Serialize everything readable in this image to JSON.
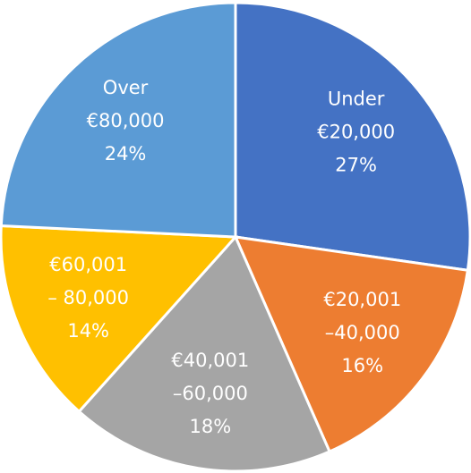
{
  "chart_data": {
    "type": "pie",
    "categories": [
      "Under\n€20,000",
      "€20,001\n–40,000",
      "€40,001\n–60,000",
      "€60,001\n– 80,000",
      "Over\n€80,000"
    ],
    "values": [
      27,
      16,
      18,
      14,
      24
    ],
    "value_labels": [
      "27%",
      "16%",
      "18%",
      "14%",
      "24%"
    ],
    "colors": [
      "#4472c4",
      "#ed7d31",
      "#a5a5a5",
      "#ffc000",
      "#5b9bd5"
    ]
  }
}
